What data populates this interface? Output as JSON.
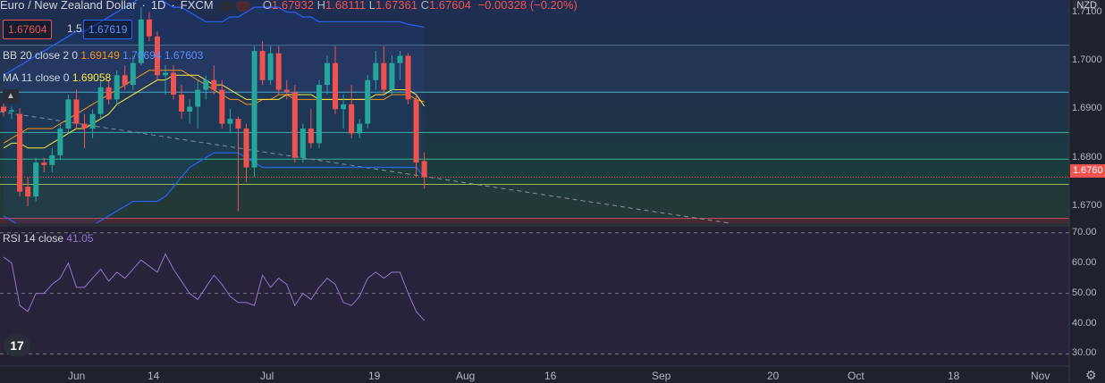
{
  "header": {
    "symbol_title": "Euro / New Zealand Dollar",
    "interval": "1D",
    "exchange": "FXCM",
    "open_label": "O",
    "open": "1.67932",
    "high_label": "H",
    "high": "1.68111",
    "low_label": "L",
    "low": "1.67361",
    "close_label": "C",
    "close": "1.67604",
    "change": "−0.00328 (−0.20%)"
  },
  "quote": {
    "bid": "1.67604",
    "spread": "1.5",
    "ask": "1.67619"
  },
  "indicators": {
    "bb": {
      "label": "BB 20 close 2 0",
      "basis": "1.69149",
      "upper": "1.70694",
      "lower": "1.67603"
    },
    "ma": {
      "label": "MA 11 close 0",
      "value": "1.69058"
    },
    "rsi": {
      "label": "RSI 14 close",
      "value": "41.05"
    }
  },
  "price_axis": {
    "currency": "NZD",
    "ticks": [
      "1.7100",
      "1.7000",
      "1.6900",
      "1.6800",
      "1.6700"
    ],
    "last_price_tag": "1.6760"
  },
  "rsi_axis": {
    "ticks": [
      "70.00",
      "60.00",
      "50.00",
      "40.00",
      "30.00"
    ]
  },
  "time_axis": {
    "labels": [
      "Jun",
      "14",
      "Jul",
      "19",
      "Aug",
      "16",
      "Sep",
      "20",
      "Oct",
      "18",
      "Nov"
    ]
  },
  "colors": {
    "up": "#26a69a",
    "down": "#ef5350",
    "bb_band": "#2962ff",
    "bb_basis": "#f7931a",
    "ma": "#ffeb3b",
    "rsi": "#9575cd",
    "background": "#1e222d"
  },
  "icons": {
    "logo": "tradingview-logo-icon",
    "settings": "gear-icon",
    "collapse": "chevron-up-icon"
  },
  "chart_data": {
    "type": "candlestick",
    "y_range": [
      1.6665,
      1.7125
    ],
    "rsi_range": [
      26,
      72
    ],
    "candles": [
      {
        "o": 1.6905,
        "h": 1.692,
        "l": 1.6885,
        "c": 1.6895
      },
      {
        "o": 1.6895,
        "h": 1.6905,
        "l": 1.688,
        "c": 1.6898
      },
      {
        "o": 1.689,
        "h": 1.6902,
        "l": 1.672,
        "c": 1.673
      },
      {
        "o": 1.674,
        "h": 1.676,
        "l": 1.67,
        "c": 1.672
      },
      {
        "o": 1.672,
        "h": 1.68,
        "l": 1.671,
        "c": 1.679
      },
      {
        "o": 1.679,
        "h": 1.68,
        "l": 1.677,
        "c": 1.6785
      },
      {
        "o": 1.6785,
        "h": 1.682,
        "l": 1.677,
        "c": 1.6805
      },
      {
        "o": 1.6805,
        "h": 1.687,
        "l": 1.6795,
        "c": 1.686
      },
      {
        "o": 1.686,
        "h": 1.693,
        "l": 1.685,
        "c": 1.692
      },
      {
        "o": 1.692,
        "h": 1.694,
        "l": 1.686,
        "c": 1.687
      },
      {
        "o": 1.687,
        "h": 1.689,
        "l": 1.682,
        "c": 1.686
      },
      {
        "o": 1.686,
        "h": 1.69,
        "l": 1.684,
        "c": 1.689
      },
      {
        "o": 1.689,
        "h": 1.696,
        "l": 1.688,
        "c": 1.6945
      },
      {
        "o": 1.6945,
        "h": 1.696,
        "l": 1.691,
        "c": 1.692
      },
      {
        "o": 1.692,
        "h": 1.698,
        "l": 1.691,
        "c": 1.697
      },
      {
        "o": 1.697,
        "h": 1.699,
        "l": 1.694,
        "c": 1.695
      },
      {
        "o": 1.695,
        "h": 1.701,
        "l": 1.694,
        "c": 1.6995
      },
      {
        "o": 1.6995,
        "h": 1.711,
        "l": 1.699,
        "c": 1.7085
      },
      {
        "o": 1.7085,
        "h": 1.71,
        "l": 1.704,
        "c": 1.705
      },
      {
        "o": 1.705,
        "h": 1.706,
        "l": 1.696,
        "c": 1.697
      },
      {
        "o": 1.697,
        "h": 1.699,
        "l": 1.693,
        "c": 1.6975
      },
      {
        "o": 1.6975,
        "h": 1.699,
        "l": 1.692,
        "c": 1.693
      },
      {
        "o": 1.693,
        "h": 1.695,
        "l": 1.688,
        "c": 1.6895
      },
      {
        "o": 1.6895,
        "h": 1.692,
        "l": 1.687,
        "c": 1.6905
      },
      {
        "o": 1.6905,
        "h": 1.696,
        "l": 1.686,
        "c": 1.694
      },
      {
        "o": 1.694,
        "h": 1.697,
        "l": 1.692,
        "c": 1.696
      },
      {
        "o": 1.696,
        "h": 1.699,
        "l": 1.693,
        "c": 1.694
      },
      {
        "o": 1.694,
        "h": 1.696,
        "l": 1.686,
        "c": 1.687
      },
      {
        "o": 1.687,
        "h": 1.69,
        "l": 1.685,
        "c": 1.688
      },
      {
        "o": 1.688,
        "h": 1.6885,
        "l": 1.669,
        "c": 1.686
      },
      {
        "o": 1.686,
        "h": 1.687,
        "l": 1.675,
        "c": 1.678
      },
      {
        "o": 1.678,
        "h": 1.703,
        "l": 1.676,
        "c": 1.702
      },
      {
        "o": 1.702,
        "h": 1.704,
        "l": 1.695,
        "c": 1.696
      },
      {
        "o": 1.696,
        "h": 1.703,
        "l": 1.695,
        "c": 1.7015
      },
      {
        "o": 1.7015,
        "h": 1.703,
        "l": 1.693,
        "c": 1.694
      },
      {
        "o": 1.694,
        "h": 1.696,
        "l": 1.692,
        "c": 1.6935
      },
      {
        "o": 1.6935,
        "h": 1.695,
        "l": 1.679,
        "c": 1.68
      },
      {
        "o": 1.68,
        "h": 1.687,
        "l": 1.679,
        "c": 1.686
      },
      {
        "o": 1.686,
        "h": 1.69,
        "l": 1.682,
        "c": 1.683
      },
      {
        "o": 1.683,
        "h": 1.696,
        "l": 1.682,
        "c": 1.695
      },
      {
        "o": 1.695,
        "h": 1.701,
        "l": 1.693,
        "c": 1.6995
      },
      {
        "o": 1.6995,
        "h": 1.703,
        "l": 1.689,
        "c": 1.69
      },
      {
        "o": 1.69,
        "h": 1.693,
        "l": 1.686,
        "c": 1.691
      },
      {
        "o": 1.691,
        "h": 1.695,
        "l": 1.684,
        "c": 1.685
      },
      {
        "o": 1.685,
        "h": 1.688,
        "l": 1.684,
        "c": 1.687
      },
      {
        "o": 1.687,
        "h": 1.697,
        "l": 1.686,
        "c": 1.696
      },
      {
        "o": 1.696,
        "h": 1.702,
        "l": 1.694,
        "c": 1.6995
      },
      {
        "o": 1.6995,
        "h": 1.703,
        "l": 1.693,
        "c": 1.694
      },
      {
        "o": 1.694,
        "h": 1.701,
        "l": 1.693,
        "c": 1.6995
      },
      {
        "o": 1.6995,
        "h": 1.702,
        "l": 1.696,
        "c": 1.701
      },
      {
        "o": 1.701,
        "h": 1.7015,
        "l": 1.691,
        "c": 1.692
      },
      {
        "o": 1.692,
        "h": 1.693,
        "l": 1.676,
        "c": 1.679
      },
      {
        "o": 1.6793,
        "h": 1.6811,
        "l": 1.6736,
        "c": 1.676
      }
    ],
    "bb_upper": [
      1.697,
      1.698,
      1.699,
      1.7,
      1.701,
      1.702,
      1.703,
      1.704,
      1.705,
      1.706,
      1.706,
      1.707,
      1.708,
      1.709,
      1.71,
      1.711,
      1.712,
      1.713,
      1.713,
      1.713,
      1.712,
      1.711,
      1.711,
      1.71,
      1.709,
      1.708,
      1.708,
      1.708,
      1.709,
      1.709,
      1.71,
      1.711,
      1.711,
      1.711,
      1.711,
      1.71,
      1.71,
      1.709,
      1.709,
      1.708,
      1.708,
      1.708,
      1.708,
      1.708,
      1.708,
      1.708,
      1.708,
      1.708,
      1.708,
      1.708,
      1.7075,
      1.7072,
      1.7069
    ],
    "bb_basis": [
      1.683,
      1.684,
      1.685,
      1.686,
      1.686,
      1.686,
      1.686,
      1.687,
      1.688,
      1.689,
      1.69,
      1.691,
      1.692,
      1.693,
      1.694,
      1.695,
      1.696,
      1.697,
      1.698,
      1.698,
      1.698,
      1.698,
      1.698,
      1.697,
      1.696,
      1.695,
      1.694,
      1.693,
      1.692,
      1.692,
      1.691,
      1.691,
      1.692,
      1.692,
      1.693,
      1.693,
      1.692,
      1.692,
      1.692,
      1.692,
      1.692,
      1.692,
      1.692,
      1.692,
      1.692,
      1.692,
      1.692,
      1.692,
      1.693,
      1.693,
      1.693,
      1.692,
      1.6915
    ],
    "bb_lower": [
      1.668,
      1.667,
      1.666,
      1.665,
      1.665,
      1.664,
      1.664,
      1.664,
      1.665,
      1.665,
      1.665,
      1.666,
      1.667,
      1.668,
      1.669,
      1.67,
      1.671,
      1.671,
      1.671,
      1.671,
      1.672,
      1.674,
      1.676,
      1.678,
      1.679,
      1.68,
      1.681,
      1.681,
      1.681,
      1.681,
      1.68,
      1.679,
      1.678,
      1.678,
      1.678,
      1.678,
      1.678,
      1.678,
      1.678,
      1.678,
      1.678,
      1.678,
      1.678,
      1.678,
      1.678,
      1.678,
      1.678,
      1.678,
      1.678,
      1.678,
      1.678,
      1.678,
      1.676
    ],
    "ma": [
      1.682,
      1.683,
      1.683,
      1.682,
      1.682,
      1.682,
      1.683,
      1.684,
      1.685,
      1.686,
      1.686,
      1.687,
      1.688,
      1.689,
      1.691,
      1.692,
      1.693,
      1.694,
      1.695,
      1.696,
      1.696,
      1.697,
      1.697,
      1.697,
      1.697,
      1.696,
      1.695,
      1.695,
      1.694,
      1.693,
      1.692,
      1.692,
      1.692,
      1.692,
      1.692,
      1.693,
      1.693,
      1.693,
      1.693,
      1.692,
      1.692,
      1.692,
      1.692,
      1.692,
      1.692,
      1.692,
      1.693,
      1.693,
      1.694,
      1.694,
      1.694,
      1.693,
      1.6906
    ],
    "rsi": [
      62,
      60,
      46,
      44,
      50,
      50,
      53,
      55,
      60,
      52,
      52,
      55,
      58,
      54,
      57,
      55,
      58,
      61,
      59,
      57,
      63,
      58,
      54,
      50,
      48,
      52,
      56,
      53,
      49,
      47,
      47,
      46,
      56,
      52,
      55,
      53,
      46,
      50,
      48,
      52,
      55,
      53,
      47,
      46,
      49,
      55,
      57,
      55,
      57,
      57,
      50,
      44,
      41.05
    ],
    "h_levels": [
      1.7032,
      1.6935,
      1.6852,
      1.6797,
      1.6745,
      1.6675
    ],
    "trendline": {
      "from": {
        "price": 1.6895
      },
      "to": {
        "price": 1.664
      }
    }
  }
}
